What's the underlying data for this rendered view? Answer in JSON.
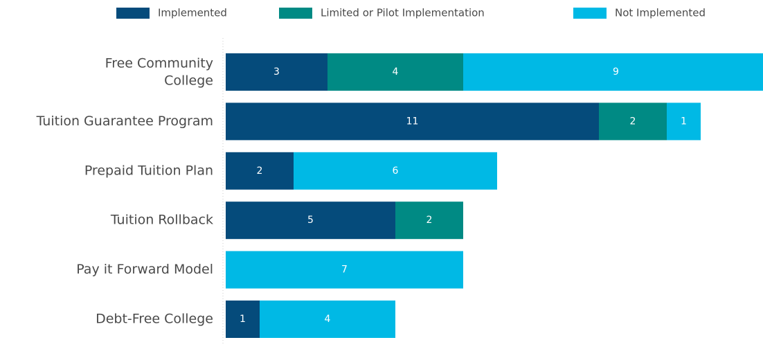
{
  "chart_data": {
    "type": "stacked-barh",
    "categories": [
      "Free Community\nCollege",
      "Tuition Guarantee Program",
      "Prepaid Tuition Plan",
      "Tuition Rollback",
      "Pay it Forward Model",
      "Debt-Free College"
    ],
    "series": [
      {
        "name": "Implemented",
        "color": "#054b7b",
        "values": [
          3,
          11,
          2,
          5,
          null,
          1
        ]
      },
      {
        "name": "Limited or Pilot Implementation",
        "color": "#008a84",
        "values": [
          4,
          2,
          null,
          2,
          null,
          null
        ]
      },
      {
        "name": "Not Implemented",
        "color": "#00b9e5",
        "values": [
          9,
          1,
          6,
          null,
          7,
          4
        ]
      }
    ]
  }
}
